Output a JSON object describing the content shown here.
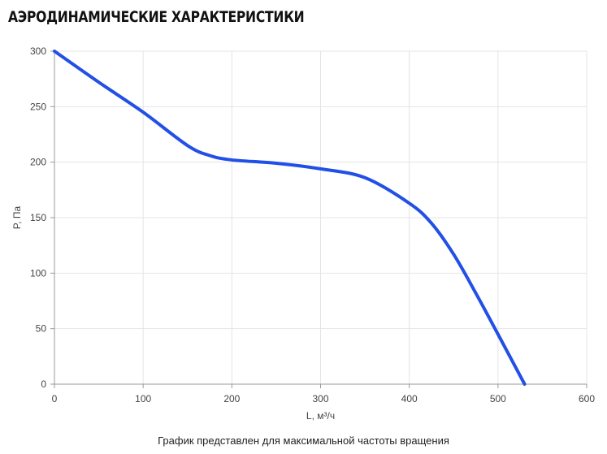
{
  "title": "АЭРОДИНАМИЧЕСКИЕ ХАРАКТЕРИСТИКИ",
  "caption": "График представлен для максимальной частоты вращения",
  "colors": {
    "line": "#2250e6",
    "grid": "#e4e4e4",
    "axis": "#999999"
  },
  "chart_data": {
    "type": "line",
    "xlabel": "L, м³/ч",
    "ylabel": "P, Па",
    "xlim": [
      0,
      600
    ],
    "ylim": [
      0,
      300
    ],
    "xticks": [
      0,
      100,
      200,
      300,
      400,
      500,
      600
    ],
    "yticks": [
      0,
      50,
      100,
      150,
      200,
      250,
      300
    ],
    "grid": true,
    "series": [
      {
        "x": [
          0,
          50,
          100,
          150,
          175,
          200,
          250,
          300,
          350,
          400,
          425,
          450,
          475,
          500,
          530
        ],
        "y": [
          300,
          272,
          245,
          215,
          206,
          202,
          199,
          194,
          186,
          163,
          145,
          117,
          82,
          45,
          0
        ]
      }
    ]
  }
}
